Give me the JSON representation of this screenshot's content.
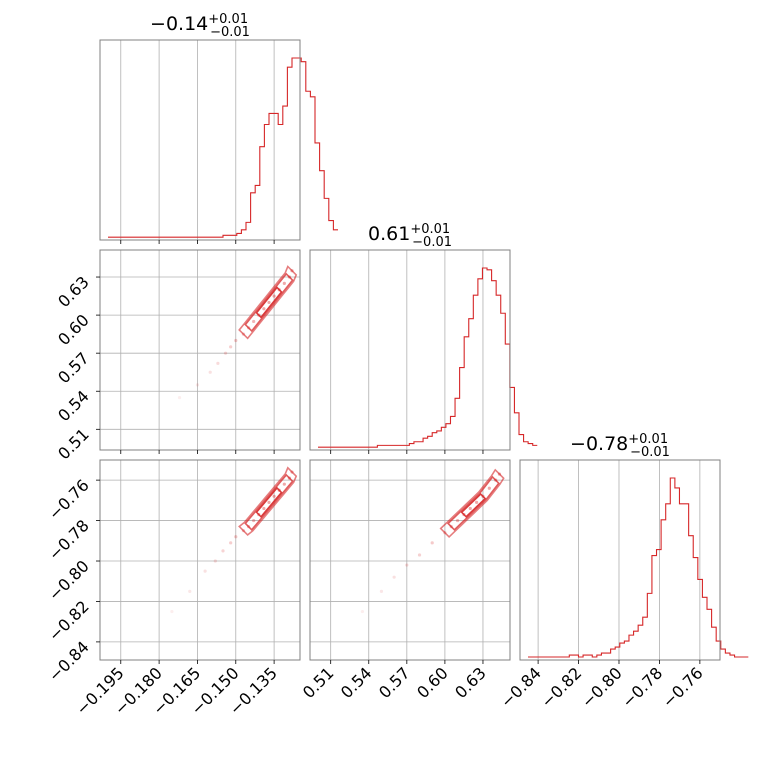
{
  "chart_data": {
    "type": "corner",
    "color": "#d62728",
    "parameters": [
      {
        "title_main": "−0.14",
        "title_sup": "+0.01",
        "title_sub": "−0.01",
        "median": -0.142,
        "sigma": 0.0075,
        "range": [
          -0.2,
          -0.128
        ],
        "ticks": [
          -0.195,
          -0.18,
          -0.165,
          -0.15,
          -0.135
        ],
        "tick_labels": [
          "−0.195",
          "−0.180",
          "−0.165",
          "−0.150",
          "−0.135"
        ],
        "hist": {
          "start": -0.2,
          "step": 0.0018,
          "counts": [
            1,
            1,
            1,
            1,
            1,
            1,
            1,
            1,
            1,
            1,
            1,
            1,
            1,
            1,
            1,
            1,
            1,
            1,
            1,
            1,
            1,
            1,
            1,
            1,
            1,
            2,
            2,
            2,
            3,
            5,
            9,
            25,
            29,
            50,
            62,
            68,
            68,
            62,
            72,
            93,
            98,
            98,
            96,
            80,
            77,
            52,
            37,
            22,
            10,
            5
          ]
        }
      },
      {
        "title_main": "0.61",
        "title_sup": "+0.01",
        "title_sub": "−0.01",
        "median": 0.608,
        "sigma": 0.011,
        "range": [
          0.5,
          0.645
        ],
        "ticks": [
          0.51,
          0.54,
          0.57,
          0.6,
          0.63
        ],
        "tick_labels": [
          "0.51",
          "0.54",
          "0.57",
          "0.60",
          "0.63"
        ],
        "hist": {
          "start": 0.5,
          "step": 0.0036,
          "counts": [
            1,
            1,
            1,
            1,
            1,
            1,
            1,
            1,
            1,
            1,
            1,
            1,
            1,
            2,
            2,
            2,
            2,
            2,
            2,
            2,
            3,
            4,
            4,
            6,
            7,
            9,
            10,
            12,
            14,
            18,
            28,
            45,
            62,
            72,
            85,
            94,
            100,
            99,
            93,
            85,
            75,
            58,
            34,
            20,
            8,
            4,
            3,
            2
          ]
        }
      },
      {
        "title_main": "−0.78",
        "title_sup": "+0.01",
        "title_sub": "−0.01",
        "median": -0.783,
        "sigma": 0.0085,
        "range": [
          -0.845,
          -0.754
        ],
        "ticks": [
          -0.84,
          -0.82,
          -0.8,
          -0.78,
          -0.76
        ],
        "tick_labels": [
          "−0.84",
          "−0.82",
          "−0.80",
          "−0.78",
          "−0.76"
        ],
        "hist": {
          "start": -0.845,
          "step": 0.00227,
          "counts": [
            1,
            1,
            1,
            1,
            1,
            1,
            1,
            1,
            1,
            2,
            2,
            1,
            2,
            2,
            1,
            2,
            3,
            3,
            5,
            6,
            8,
            9,
            12,
            14,
            17,
            21,
            33,
            52,
            55,
            70,
            78,
            91,
            86,
            78,
            78,
            62,
            51,
            40,
            31,
            25,
            16,
            9,
            5,
            3,
            2,
            1,
            1,
            1
          ]
        }
      }
    ],
    "correlations": [
      {
        "row": 1,
        "col": 0,
        "samples": [
          [
            -0.172,
            0.535
          ],
          [
            -0.165,
            0.545
          ],
          [
            -0.16,
            0.555
          ],
          [
            -0.157,
            0.562
          ],
          [
            -0.154,
            0.57
          ],
          [
            -0.152,
            0.575
          ],
          [
            -0.15,
            0.58
          ],
          [
            -0.147,
            0.585
          ],
          [
            -0.145,
            0.59
          ],
          [
            -0.143,
            0.595
          ],
          [
            -0.141,
            0.6
          ],
          [
            -0.139,
            0.605
          ],
          [
            -0.137,
            0.61
          ],
          [
            -0.135,
            0.615
          ],
          [
            -0.133,
            0.62
          ],
          [
            -0.131,
            0.625
          ],
          [
            -0.129,
            0.63
          ],
          [
            -0.128,
            0.635
          ]
        ]
      },
      {
        "row": 2,
        "col": 0,
        "samples": [
          [
            -0.175,
            -0.825
          ],
          [
            -0.168,
            -0.815
          ],
          [
            -0.162,
            -0.805
          ],
          [
            -0.158,
            -0.8
          ],
          [
            -0.155,
            -0.795
          ],
          [
            -0.152,
            -0.791
          ],
          [
            -0.15,
            -0.788
          ],
          [
            -0.147,
            -0.785
          ],
          [
            -0.145,
            -0.783
          ],
          [
            -0.143,
            -0.78
          ],
          [
            -0.141,
            -0.777
          ],
          [
            -0.139,
            -0.774
          ],
          [
            -0.137,
            -0.771
          ],
          [
            -0.135,
            -0.768
          ],
          [
            -0.133,
            -0.765
          ],
          [
            -0.131,
            -0.762
          ],
          [
            -0.129,
            -0.759
          ],
          [
            -0.128,
            -0.756
          ]
        ]
      },
      {
        "row": 2,
        "col": 1,
        "samples": [
          [
            0.535,
            -0.825
          ],
          [
            0.55,
            -0.815
          ],
          [
            0.56,
            -0.808
          ],
          [
            0.57,
            -0.802
          ],
          [
            0.58,
            -0.797
          ],
          [
            0.59,
            -0.791
          ],
          [
            0.6,
            -0.786
          ],
          [
            0.605,
            -0.783
          ],
          [
            0.61,
            -0.78
          ],
          [
            0.615,
            -0.777
          ],
          [
            0.62,
            -0.774
          ],
          [
            0.625,
            -0.771
          ],
          [
            0.63,
            -0.768
          ],
          [
            0.635,
            -0.764
          ],
          [
            0.64,
            -0.76
          ],
          [
            0.643,
            -0.757
          ]
        ]
      }
    ]
  }
}
